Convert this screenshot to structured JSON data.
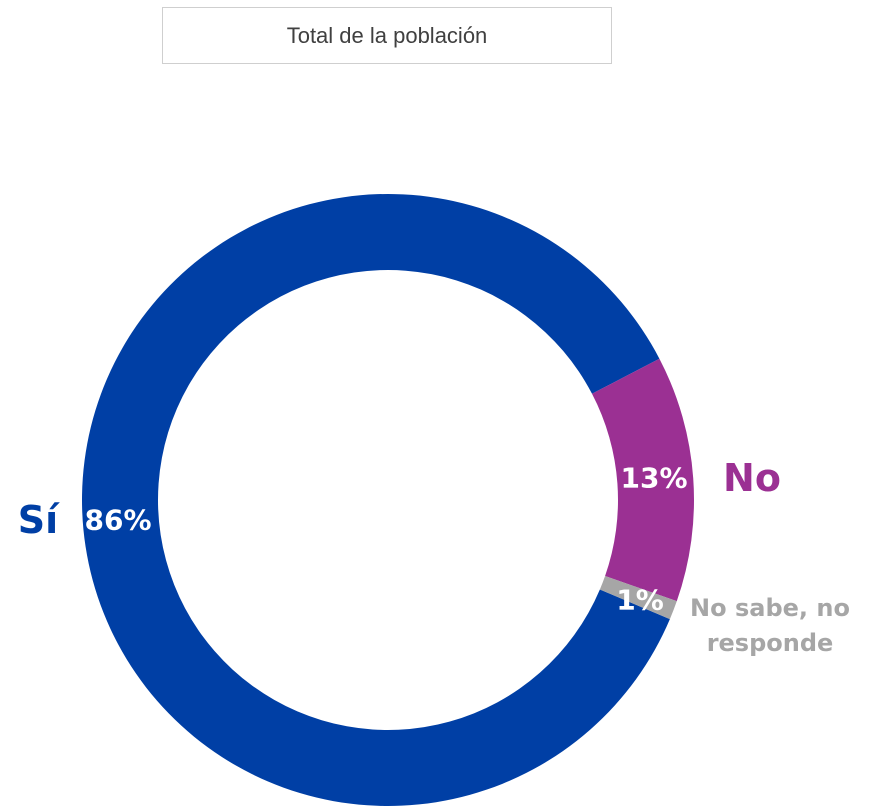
{
  "chart_data": {
    "type": "donut",
    "title": "Total de la población",
    "categories": [
      "Sí",
      "No",
      "No sabe, no responde"
    ],
    "values": [
      86,
      13,
      1
    ],
    "value_labels": [
      "86%",
      "13%",
      "1%"
    ],
    "colors": [
      "#003fa5",
      "#9b3093",
      "#a6a6a6"
    ]
  }
}
